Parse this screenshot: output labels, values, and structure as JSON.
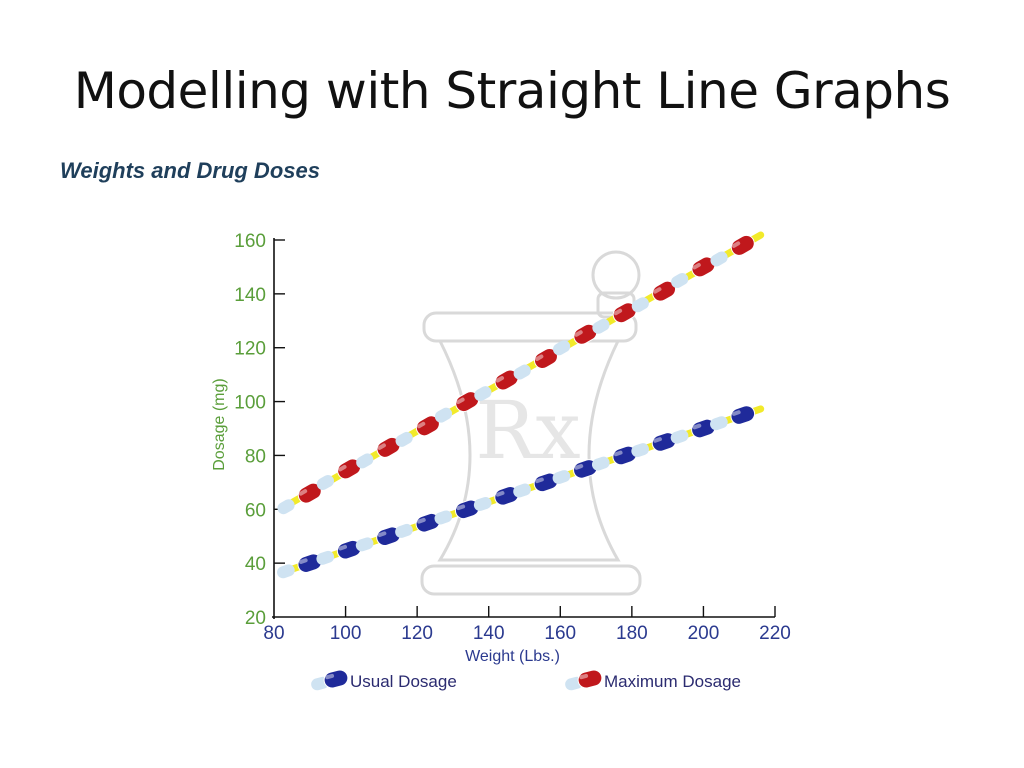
{
  "slide": {
    "title": "Modelling with Straight Line Graphs",
    "subtitle": "Weights and Drug Doses"
  },
  "colors": {
    "axis_y": "#5a9e3a",
    "axis_x": "#2b3a8f",
    "trend_line": "#f2ea2a",
    "usual_pill": "#1f2a9a",
    "maximum_pill": "#c0181c",
    "pill_light": "#cfe3f2",
    "watermark": "#d9d9d9"
  },
  "chart_data": {
    "type": "scatter",
    "xlabel": "Weight (Lbs.)",
    "ylabel": "Dosage (mg)",
    "xlim": [
      80,
      220
    ],
    "ylim": [
      20,
      160
    ],
    "x_ticks": [
      "80",
      "100",
      "120",
      "140",
      "160",
      "180",
      "200",
      "220"
    ],
    "y_ticks": [
      "20",
      "40",
      "60",
      "80",
      "100",
      "120",
      "140",
      "160"
    ],
    "watermark": "Rx",
    "legend": [
      "Usual Dosage",
      "Maximum Dosage"
    ],
    "series": [
      {
        "name": "Usual Dosage",
        "x": [
          90,
          101,
          112,
          123,
          134,
          145,
          156,
          167,
          178,
          189,
          200,
          211
        ],
        "y": [
          40,
          45,
          50,
          55,
          60,
          65,
          70,
          75,
          80,
          85,
          90,
          95
        ]
      },
      {
        "name": "Maximum Dosage",
        "x": [
          90,
          101,
          112,
          123,
          134,
          145,
          156,
          167,
          178,
          189,
          200,
          211
        ],
        "y": [
          66,
          75,
          83,
          91,
          100,
          108,
          116,
          125,
          133,
          141,
          150,
          158
        ]
      }
    ]
  }
}
